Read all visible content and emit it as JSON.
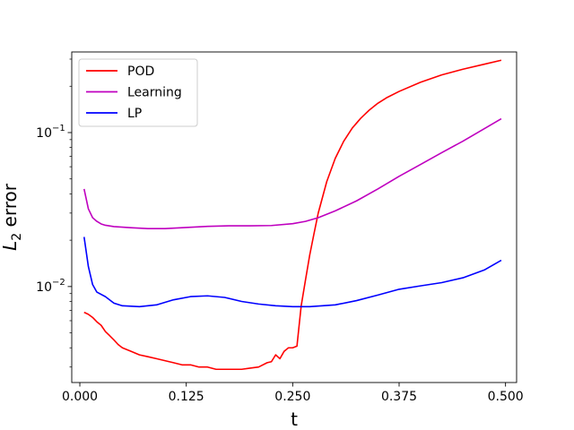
{
  "chart_data": {
    "type": "line",
    "title": "",
    "xlabel": "t",
    "ylabel_base": "L",
    "ylabel_sub": "2",
    "ylabel_rest": " error",
    "xscale": "linear",
    "yscale": "log",
    "xlim": [
      -0.0095,
      0.513
    ],
    "ylim": [
      0.00238,
      0.3339
    ],
    "grid": false,
    "legend_position": "top-left",
    "x_ticks": [
      {
        "value": 0.0,
        "label": "0.000"
      },
      {
        "value": 0.125,
        "label": "0.125"
      },
      {
        "value": 0.25,
        "label": "0.250"
      },
      {
        "value": 0.375,
        "label": "0.375"
      },
      {
        "value": 0.5,
        "label": "0.500"
      }
    ],
    "y_major_ticks": [
      {
        "value": 0.01,
        "base": "10",
        "exp": "−2"
      },
      {
        "value": 0.1,
        "base": "10",
        "exp": "−1"
      }
    ],
    "y_minor_ticks": [
      0.003,
      0.004,
      0.005,
      0.006,
      0.007,
      0.008,
      0.009,
      0.02,
      0.03,
      0.04,
      0.05,
      0.06,
      0.07,
      0.08,
      0.09,
      0.2,
      0.3
    ],
    "series": [
      {
        "name": "POD",
        "color": "#ff0000",
        "points": [
          [
            0.005,
            0.0068
          ],
          [
            0.01,
            0.0066
          ],
          [
            0.015,
            0.0063
          ],
          [
            0.02,
            0.0059
          ],
          [
            0.025,
            0.0056
          ],
          [
            0.03,
            0.0051
          ],
          [
            0.035,
            0.0048
          ],
          [
            0.04,
            0.0045
          ],
          [
            0.045,
            0.0042
          ],
          [
            0.05,
            0.004
          ],
          [
            0.06,
            0.0038
          ],
          [
            0.07,
            0.0036
          ],
          [
            0.08,
            0.0035
          ],
          [
            0.09,
            0.0034
          ],
          [
            0.1,
            0.0033
          ],
          [
            0.11,
            0.0032
          ],
          [
            0.12,
            0.0031
          ],
          [
            0.13,
            0.0031
          ],
          [
            0.14,
            0.003
          ],
          [
            0.15,
            0.003
          ],
          [
            0.16,
            0.0029
          ],
          [
            0.17,
            0.0029
          ],
          [
            0.18,
            0.0029
          ],
          [
            0.19,
            0.0029
          ],
          [
            0.2,
            0.00295
          ],
          [
            0.21,
            0.003
          ],
          [
            0.22,
            0.0032
          ],
          [
            0.225,
            0.00325
          ],
          [
            0.23,
            0.0036
          ],
          [
            0.235,
            0.0034
          ],
          [
            0.24,
            0.0038
          ],
          [
            0.245,
            0.004
          ],
          [
            0.25,
            0.004
          ],
          [
            0.255,
            0.0041
          ],
          [
            0.26,
            0.0075
          ],
          [
            0.265,
            0.011
          ],
          [
            0.27,
            0.016
          ],
          [
            0.275,
            0.022
          ],
          [
            0.28,
            0.03
          ],
          [
            0.29,
            0.048
          ],
          [
            0.3,
            0.068
          ],
          [
            0.31,
            0.088
          ],
          [
            0.32,
            0.107
          ],
          [
            0.33,
            0.124
          ],
          [
            0.34,
            0.14
          ],
          [
            0.35,
            0.155
          ],
          [
            0.36,
            0.168
          ],
          [
            0.375,
            0.185
          ],
          [
            0.4,
            0.212
          ],
          [
            0.425,
            0.237
          ],
          [
            0.45,
            0.258
          ],
          [
            0.475,
            0.278
          ],
          [
            0.495,
            0.295
          ]
        ]
      },
      {
        "name": "Learning",
        "color": "#bf00bf",
        "points": [
          [
            0.005,
            0.043
          ],
          [
            0.01,
            0.032
          ],
          [
            0.015,
            0.028
          ],
          [
            0.02,
            0.0265
          ],
          [
            0.025,
            0.0255
          ],
          [
            0.03,
            0.025
          ],
          [
            0.04,
            0.0245
          ],
          [
            0.06,
            0.0241
          ],
          [
            0.08,
            0.0238
          ],
          [
            0.1,
            0.0238
          ],
          [
            0.125,
            0.0242
          ],
          [
            0.15,
            0.0246
          ],
          [
            0.175,
            0.0248
          ],
          [
            0.2,
            0.0248
          ],
          [
            0.225,
            0.0249
          ],
          [
            0.25,
            0.0256
          ],
          [
            0.265,
            0.0265
          ],
          [
            0.28,
            0.028
          ],
          [
            0.3,
            0.031
          ],
          [
            0.325,
            0.036
          ],
          [
            0.35,
            0.043
          ],
          [
            0.375,
            0.052
          ],
          [
            0.4,
            0.062
          ],
          [
            0.425,
            0.074
          ],
          [
            0.45,
            0.088
          ],
          [
            0.475,
            0.106
          ],
          [
            0.495,
            0.123
          ]
        ]
      },
      {
        "name": "LP",
        "color": "#0000ff",
        "points": [
          [
            0.005,
            0.021
          ],
          [
            0.01,
            0.0135
          ],
          [
            0.015,
            0.0103
          ],
          [
            0.02,
            0.0092
          ],
          [
            0.03,
            0.0086
          ],
          [
            0.04,
            0.0078
          ],
          [
            0.05,
            0.0075
          ],
          [
            0.07,
            0.0074
          ],
          [
            0.09,
            0.0076
          ],
          [
            0.11,
            0.0082
          ],
          [
            0.13,
            0.0086
          ],
          [
            0.15,
            0.0087
          ],
          [
            0.17,
            0.0085
          ],
          [
            0.19,
            0.008
          ],
          [
            0.21,
            0.0077
          ],
          [
            0.23,
            0.0075
          ],
          [
            0.25,
            0.0074
          ],
          [
            0.27,
            0.0074
          ],
          [
            0.3,
            0.0076
          ],
          [
            0.325,
            0.0081
          ],
          [
            0.35,
            0.0088
          ],
          [
            0.375,
            0.0096
          ],
          [
            0.4,
            0.0101
          ],
          [
            0.425,
            0.0106
          ],
          [
            0.45,
            0.0114
          ],
          [
            0.475,
            0.0128
          ],
          [
            0.495,
            0.0148
          ]
        ]
      }
    ]
  }
}
